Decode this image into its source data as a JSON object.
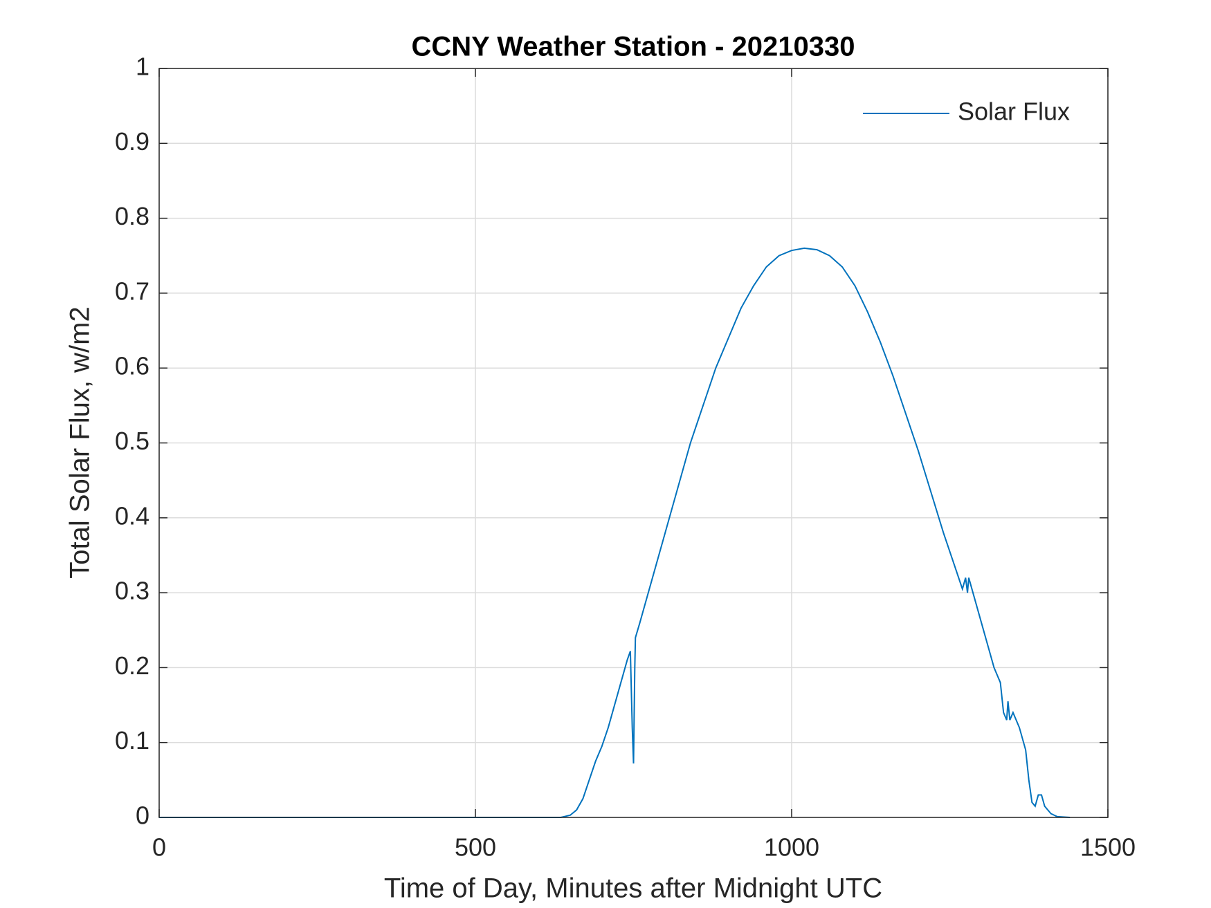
{
  "chart_data": {
    "type": "line",
    "title": "CCNY Weather Station - 20210330",
    "xlabel": "Time of Day, Minutes after Midnight UTC",
    "ylabel": "Total Solar Flux, w/m2",
    "xlim": [
      0,
      1500
    ],
    "xticks": [
      0,
      500,
      1000,
      1500
    ],
    "ylim": [
      0,
      1
    ],
    "yticks": [
      0,
      0.1,
      0.2,
      0.3,
      0.4,
      0.5,
      0.6,
      0.7,
      0.8,
      0.9,
      1
    ],
    "grid": true,
    "legend": "upper right",
    "series": [
      {
        "name": "Solar Flux",
        "color": "#0072bd",
        "x": [
          0,
          635,
          640,
          650,
          660,
          670,
          680,
          690,
          700,
          710,
          720,
          730,
          740,
          745,
          748,
          750,
          752,
          753,
          760,
          780,
          800,
          820,
          840,
          860,
          880,
          900,
          920,
          940,
          960,
          980,
          1000,
          1020,
          1040,
          1060,
          1080,
          1100,
          1120,
          1140,
          1160,
          1180,
          1200,
          1220,
          1240,
          1260,
          1270,
          1275,
          1278,
          1280,
          1290,
          1300,
          1310,
          1320,
          1325,
          1330,
          1335,
          1340,
          1342,
          1345,
          1350,
          1360,
          1370,
          1375,
          1380,
          1385,
          1390,
          1395,
          1400,
          1410,
          1420,
          1440
        ],
        "values": [
          0,
          0,
          0.001,
          0.003,
          0.01,
          0.025,
          0.05,
          0.075,
          0.095,
          0.12,
          0.15,
          0.18,
          0.21,
          0.222,
          0.12,
          0.072,
          0.2,
          0.24,
          0.26,
          0.32,
          0.38,
          0.44,
          0.5,
          0.55,
          0.6,
          0.64,
          0.68,
          0.71,
          0.735,
          0.75,
          0.757,
          0.76,
          0.758,
          0.75,
          0.735,
          0.71,
          0.675,
          0.635,
          0.59,
          0.54,
          0.49,
          0.435,
          0.38,
          0.33,
          0.305,
          0.32,
          0.3,
          0.32,
          0.29,
          0.26,
          0.23,
          0.2,
          0.19,
          0.18,
          0.14,
          0.13,
          0.155,
          0.13,
          0.14,
          0.12,
          0.09,
          0.05,
          0.02,
          0.015,
          0.03,
          0.03,
          0.015,
          0.005,
          0.001,
          0
        ]
      }
    ]
  }
}
